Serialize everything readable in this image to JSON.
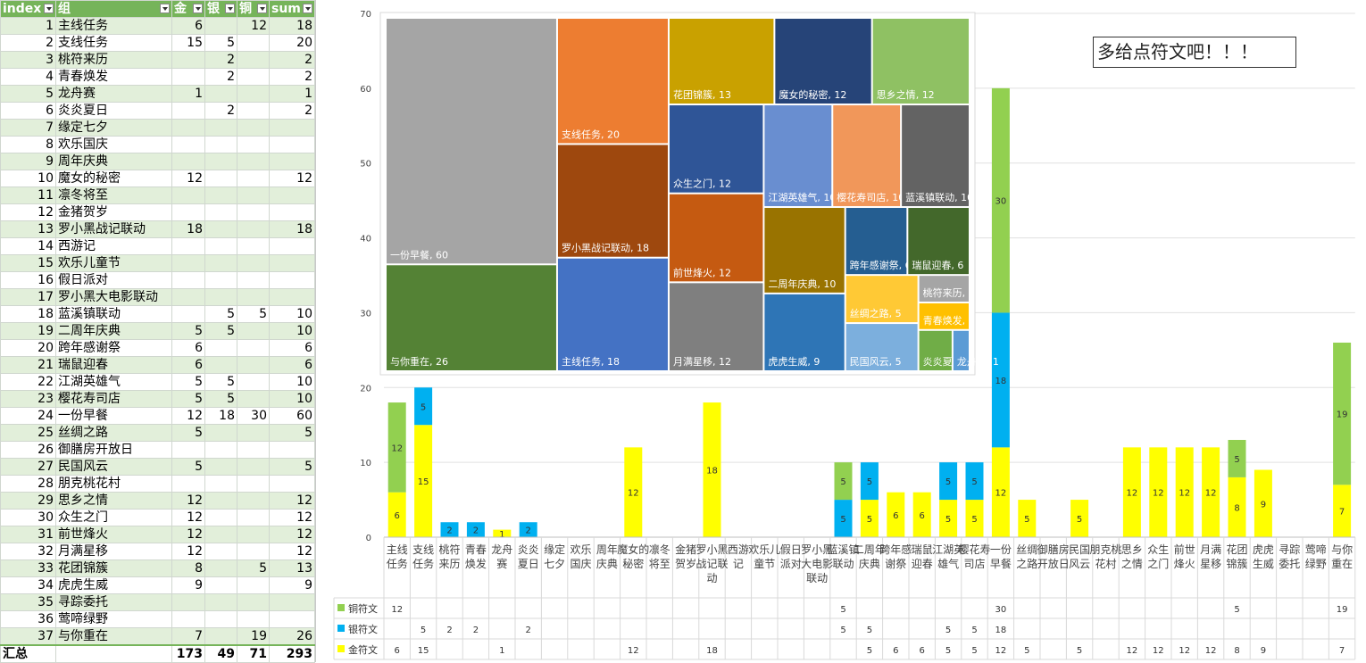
{
  "sheet": {
    "headers": [
      "index",
      "组",
      "金",
      "银",
      "铜",
      "sum"
    ],
    "rows": [
      [
        "1",
        "主线任务",
        "6",
        "",
        "12",
        "18"
      ],
      [
        "2",
        "支线任务",
        "15",
        "5",
        "",
        "20"
      ],
      [
        "3",
        "桃符来历",
        "",
        "2",
        "",
        "2"
      ],
      [
        "4",
        "青春焕发",
        "",
        "2",
        "",
        "2"
      ],
      [
        "5",
        "龙舟赛",
        "1",
        "",
        "",
        "1"
      ],
      [
        "6",
        "炎炎夏日",
        "",
        "2",
        "",
        "2"
      ],
      [
        "7",
        "缘定七夕",
        "",
        "",
        "",
        ""
      ],
      [
        "8",
        "欢乐国庆",
        "",
        "",
        "",
        ""
      ],
      [
        "9",
        "周年庆典",
        "",
        "",
        "",
        ""
      ],
      [
        "10",
        "魔女的秘密",
        "12",
        "",
        "",
        "12"
      ],
      [
        "11",
        "凛冬将至",
        "",
        "",
        "",
        ""
      ],
      [
        "12",
        "金猪贺岁",
        "",
        "",
        "",
        ""
      ],
      [
        "13",
        "罗小黑战记联动",
        "18",
        "",
        "",
        "18"
      ],
      [
        "14",
        "西游记",
        "",
        "",
        "",
        ""
      ],
      [
        "15",
        "欢乐儿童节",
        "",
        "",
        "",
        ""
      ],
      [
        "16",
        "假日派对",
        "",
        "",
        "",
        ""
      ],
      [
        "17",
        "罗小黑大电影联动",
        "",
        "",
        "",
        ""
      ],
      [
        "18",
        "蓝溪镇联动",
        "",
        "5",
        "5",
        "10"
      ],
      [
        "19",
        "二周年庆典",
        "5",
        "5",
        "",
        "10"
      ],
      [
        "20",
        "跨年感谢祭",
        "6",
        "",
        "",
        "6"
      ],
      [
        "21",
        "瑞鼠迎春",
        "6",
        "",
        "",
        "6"
      ],
      [
        "22",
        "江湖英雄气",
        "5",
        "5",
        "",
        "10"
      ],
      [
        "23",
        "樱花寿司店",
        "5",
        "5",
        "",
        "10"
      ],
      [
        "24",
        "一份早餐",
        "12",
        "18",
        "30",
        "60"
      ],
      [
        "25",
        "丝绸之路",
        "5",
        "",
        "",
        "5"
      ],
      [
        "26",
        "御膳房开放日",
        "",
        "",
        "",
        ""
      ],
      [
        "27",
        "民国风云",
        "5",
        "",
        "",
        "5"
      ],
      [
        "28",
        "朋克桃花村",
        "",
        "",
        "",
        ""
      ],
      [
        "29",
        "思乡之情",
        "12",
        "",
        "",
        "12"
      ],
      [
        "30",
        "众生之门",
        "12",
        "",
        "",
        "12"
      ],
      [
        "31",
        "前世烽火",
        "12",
        "",
        "",
        "12"
      ],
      [
        "32",
        "月满星移",
        "12",
        "",
        "",
        "12"
      ],
      [
        "33",
        "花团锦簇",
        "8",
        "",
        "5",
        "13"
      ],
      [
        "34",
        "虎虎生威",
        "9",
        "",
        "",
        "9"
      ],
      [
        "35",
        "寻踪委托",
        "",
        "",
        "",
        ""
      ],
      [
        "36",
        "莺啼绿野",
        "",
        "",
        "",
        ""
      ],
      [
        "37",
        "与你重在",
        "7",
        "",
        "19",
        "26"
      ]
    ],
    "total": [
      "汇总",
      "",
      "173",
      "49",
      "71",
      "293"
    ]
  },
  "callout": "多给点符文吧！！！",
  "chart_data": [
    {
      "type": "bar",
      "stacked": true,
      "ylim": [
        0,
        70
      ],
      "yticks": [
        0,
        10,
        20,
        30,
        40,
        50,
        60,
        70
      ],
      "grid": true,
      "categories": [
        "主线任务",
        "支线任务",
        "桃符来历",
        "青春焕发",
        "龙舟赛",
        "炎炎夏日",
        "缘定七夕",
        "欢乐国庆",
        "周年庆典",
        "魔女的秘密",
        "凛冬将至",
        "金猪贺岁",
        "罗小黑战记联动",
        "西游记",
        "欢乐儿童节",
        "假日派对",
        "罗小黑大电影联动",
        "蓝溪镇联动",
        "二周年庆典",
        "跨年感谢祭",
        "瑞鼠迎春",
        "江湖英雄气",
        "樱花寿司店",
        "一份早餐",
        "丝绸之路",
        "御膳房开放日",
        "民国风云",
        "朋克桃花村",
        "思乡之情",
        "众生之门",
        "前世烽火",
        "月满星移",
        "花团锦簇",
        "虎虎生威",
        "寻踪委托",
        "莺啼绿野",
        "与你重在"
      ],
      "axis_labels": [
        "主线任务",
        "支线任务",
        "桃符来历",
        "青春焕发",
        "龙舟赛",
        "炎炎夏日",
        "缘定七夕",
        "欢乐国庆",
        "周年庆典",
        "魔女的秘密",
        "凛冬将至",
        "金猪贺岁",
        "罗小黑战记联动",
        "西游记",
        "欢乐儿童节",
        "假日派对",
        "罗小黑大电影联动",
        "蓝溪镇联动",
        "二周年庆典",
        "跨年感谢祭",
        "瑞鼠迎春",
        "江湖英雄气",
        "樱花寿司店",
        "一份早餐",
        "丝绸之路",
        "御膳房开放日",
        "民国风云",
        "朋克桃花村",
        "思乡之情",
        "众生之门",
        "前世烽火",
        "月满星移",
        "花团锦簇",
        "虎虎生威",
        "寻踪委托",
        "莺啼绿野",
        "与你重在"
      ],
      "series": [
        {
          "name": "金符文",
          "color": "#ffff00",
          "values": [
            6,
            15,
            0,
            0,
            1,
            0,
            0,
            0,
            0,
            12,
            0,
            0,
            18,
            0,
            0,
            0,
            0,
            0,
            5,
            6,
            6,
            5,
            5,
            12,
            5,
            0,
            5,
            0,
            12,
            12,
            12,
            12,
            8,
            9,
            0,
            0,
            7
          ]
        },
        {
          "name": "银符文",
          "color": "#00b0f0",
          "values": [
            0,
            5,
            2,
            2,
            0,
            2,
            0,
            0,
            0,
            0,
            0,
            0,
            0,
            0,
            0,
            0,
            0,
            5,
            5,
            0,
            0,
            5,
            5,
            18,
            0,
            0,
            0,
            0,
            0,
            0,
            0,
            0,
            0,
            0,
            0,
            0,
            0
          ]
        },
        {
          "name": "铜符文",
          "color": "#92d050",
          "values": [
            12,
            0,
            0,
            0,
            0,
            0,
            0,
            0,
            0,
            0,
            0,
            0,
            0,
            0,
            0,
            0,
            0,
            5,
            0,
            0,
            0,
            0,
            0,
            30,
            0,
            0,
            0,
            0,
            0,
            0,
            0,
            0,
            5,
            0,
            0,
            0,
            19
          ]
        }
      ],
      "data_table": true
    },
    {
      "type": "treemap",
      "items": [
        {
          "label": "一份早餐",
          "value": 60,
          "color": "#a5a5a5"
        },
        {
          "label": "与你重在",
          "value": 26,
          "color": "#548235"
        },
        {
          "label": "支线任务",
          "value": 20,
          "color": "#ed7d31"
        },
        {
          "label": "罗小黑战记联动",
          "value": 18,
          "color": "#9e480e"
        },
        {
          "label": "主线任务",
          "value": 18,
          "color": "#4472c4"
        },
        {
          "label": "花团锦簇",
          "value": 13,
          "color": "#c9a100"
        },
        {
          "label": "魔女的秘密",
          "value": 12,
          "color": "#264478"
        },
        {
          "label": "思乡之情",
          "value": 12,
          "color": "#8fc163"
        },
        {
          "label": "众生之门",
          "value": 12,
          "color": "#2f5597"
        },
        {
          "label": "前世烽火",
          "value": 12,
          "color": "#c55a11"
        },
        {
          "label": "月满星移",
          "value": 12,
          "color": "#7f7f7f"
        },
        {
          "label": "江湖英雄气",
          "value": 10,
          "color": "#698ed0"
        },
        {
          "label": "樱花寿司店",
          "value": 10,
          "color": "#f1975a"
        },
        {
          "label": "蓝溪镇联动",
          "value": 10,
          "color": "#636363"
        },
        {
          "label": "二周年庆典",
          "value": 10,
          "color": "#997300"
        },
        {
          "label": "跨年感谢祭",
          "value": 6,
          "color": "#255e91"
        },
        {
          "label": "瑞鼠迎春",
          "value": 6,
          "color": "#43682b"
        },
        {
          "label": "虎虎生威",
          "value": 9,
          "color": "#2e75b6"
        },
        {
          "label": "丝绸之路",
          "value": 5,
          "color": "#ffc935"
        },
        {
          "label": "民国风云",
          "value": 5,
          "color": "#7cafdd"
        },
        {
          "label": "桃符来历",
          "value": 2,
          "color": "#a5a5a5"
        },
        {
          "label": "青春焕发",
          "value": 2,
          "color": "#ffc000"
        },
        {
          "label": "炎炎夏日",
          "value": 2,
          "color": "#70ad47"
        },
        {
          "label": "龙舟赛",
          "value": 1,
          "color": "#5b9bd5"
        }
      ]
    }
  ]
}
